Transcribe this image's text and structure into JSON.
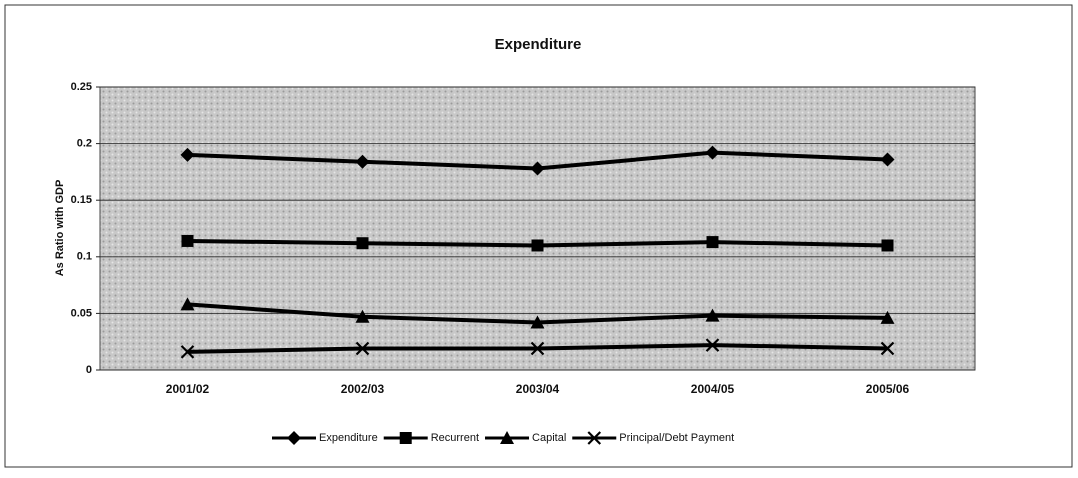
{
  "chart_data": {
    "type": "line",
    "title": "Expenditure",
    "y_label": "As Ratio with GDP",
    "categories": [
      "2001/02",
      "2002/03",
      "2003/04",
      "2004/05",
      "2005/06"
    ],
    "series": [
      {
        "name": "Expenditure",
        "color": "#000000",
        "marker": "diamond",
        "values": [
          0.19,
          0.184,
          0.178,
          0.192,
          0.186
        ]
      },
      {
        "name": "Recurrent",
        "color": "#000000",
        "marker": "square",
        "values": [
          0.114,
          0.112,
          0.11,
          0.113,
          0.11
        ]
      },
      {
        "name": "Capital",
        "color": "#000000",
        "marker": "triangle",
        "values": [
          0.058,
          0.047,
          0.042,
          0.048,
          0.046
        ]
      },
      {
        "name": "Principal/Debt Payment",
        "color": "#000000",
        "marker": "x",
        "values": [
          0.016,
          0.019,
          0.019,
          0.022,
          0.019
        ]
      }
    ],
    "ylim": [
      0,
      0.25
    ],
    "yticks": [
      0,
      0.05,
      0.1,
      0.15,
      0.2,
      0.25
    ],
    "grid": true,
    "legend": "bottom"
  }
}
